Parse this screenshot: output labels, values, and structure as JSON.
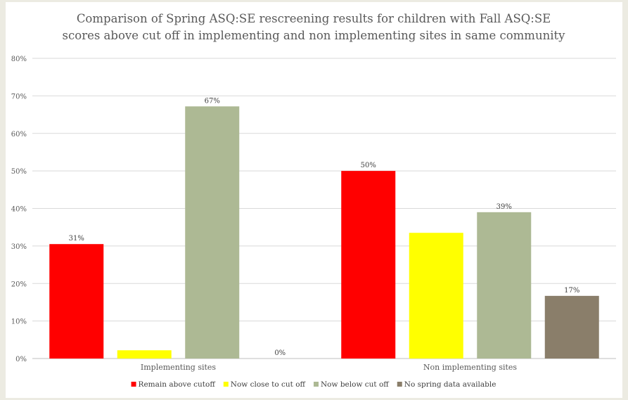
{
  "chart_data": {
    "type": "bar",
    "title_lines": [
      "Comparison of Spring ASQ:SE rescreening results for children with Fall ASQ:SE",
      "scores above cut off in implementing and non implementing sites in same community"
    ],
    "categories": [
      "Implementing sites",
      "Non implementing sites"
    ],
    "series": [
      {
        "name": "Remain above cutoff",
        "color": "#ff0000",
        "values": [
          30.5,
          50
        ],
        "labels": [
          "31%",
          "50%"
        ]
      },
      {
        "name": "Now close to cut off",
        "color": "#ffff00",
        "values": [
          2.2,
          33.5
        ],
        "labels": [
          "",
          ""
        ]
      },
      {
        "name": "Now below cut off",
        "color": "#adb994",
        "values": [
          67.2,
          39
        ],
        "labels": [
          "67%",
          "39%"
        ]
      },
      {
        "name": "No spring data available",
        "color": "#8a7e6a",
        "values": [
          0,
          16.7
        ],
        "labels": [
          "0%",
          "17%"
        ]
      }
    ],
    "yticks": [
      "0%",
      "10%",
      "20%",
      "30%",
      "40%",
      "50%",
      "60%",
      "70%",
      "80%"
    ],
    "ylim": [
      0,
      80
    ],
    "grid": true,
    "legend_position": "bottom"
  }
}
